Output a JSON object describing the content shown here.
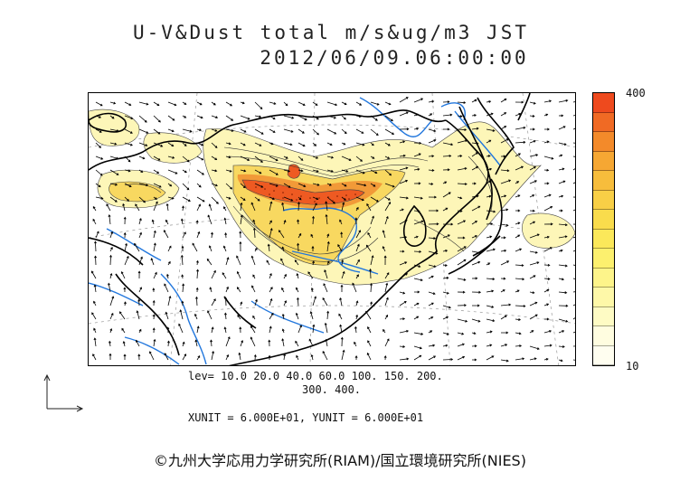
{
  "title": {
    "line1": "U-V&Dust total m/s&ug/m3 JST",
    "line2": "2012/06/09.06:00:00"
  },
  "colorbar": {
    "max_label": "400",
    "min_label": "10",
    "colors": [
      "#ee4a1e",
      "#f06a24",
      "#f38a2a",
      "#f6a733",
      "#f7bd3c",
      "#f8cf46",
      "#f9dc4c",
      "#fbe85a",
      "#fcf06e",
      "#fdf48a",
      "#fef8a8",
      "#fefbc4",
      "#fffde0",
      "#fffef0"
    ]
  },
  "levels": {
    "line1": "lev= 10.0 20.0 40.0 60.0 100. 150. 200.",
    "line2": "300. 400."
  },
  "units": "XUNIT = 6.000E+01, YUNIT = 6.000E+01",
  "credit": "©九州大学応用力学研究所(RIAM)/国立環境研究所(NIES)",
  "map": {
    "dust_colors": {
      "low": "#fdf6b8",
      "mid": "#f8d860",
      "high": "#f29a38",
      "peak": "#ee5a22"
    },
    "river_color": "#2277dd",
    "coast_color": "#000000"
  }
}
